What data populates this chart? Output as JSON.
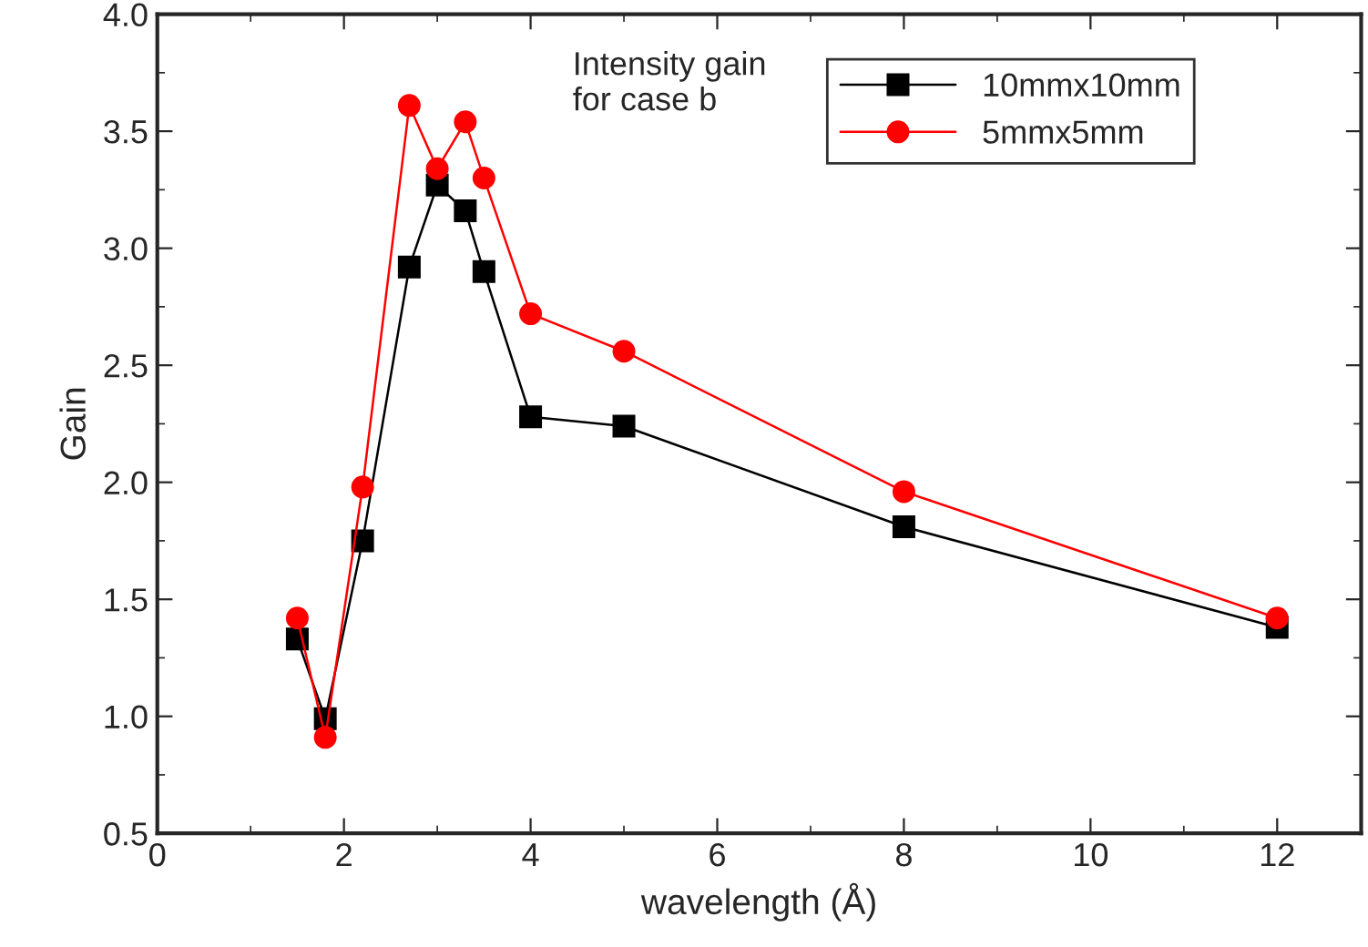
{
  "chart_data": {
    "type": "line",
    "xlabel": "wavelength (Å)",
    "ylabel": "Gain",
    "annotations": [
      "Intensity gain\nfor case b"
    ],
    "x": [
      1.5,
      1.8,
      2.2,
      2.7,
      3.0,
      3.3,
      3.5,
      4,
      5,
      8,
      12
    ],
    "series": [
      {
        "name": "10mmx10mm",
        "color": "#000000",
        "marker": "square",
        "values": [
          1.33,
          0.99,
          1.75,
          2.92,
          3.27,
          3.16,
          2.9,
          2.28,
          2.24,
          1.81,
          1.38
        ]
      },
      {
        "name": "5mmx5mm",
        "color": "#ff0000",
        "marker": "circle",
        "values": [
          1.42,
          0.91,
          1.98,
          3.61,
          3.34,
          3.54,
          3.3,
          2.72,
          2.56,
          1.96,
          1.42
        ]
      }
    ],
    "xlim": [
      0,
      12.9
    ],
    "xticks": [
      0,
      2,
      4,
      6,
      8,
      10,
      12
    ],
    "ylim": [
      0.5,
      4.0
    ],
    "yticks": [
      {
        "value": 0.5,
        "label": "0.5"
      },
      {
        "value": 1.0,
        "label": "1.0"
      },
      {
        "value": 1.5,
        "label": "1.5"
      },
      {
        "value": 2.0,
        "label": "2.0"
      },
      {
        "value": 2.5,
        "label": "2.5"
      },
      {
        "value": 3.0,
        "label": "3.0"
      },
      {
        "value": 3.5,
        "label": "3.5"
      },
      {
        "value": 4.0,
        "label": "4.0"
      }
    ],
    "grid": false,
    "legend": "top right",
    "line_style": "solid"
  }
}
